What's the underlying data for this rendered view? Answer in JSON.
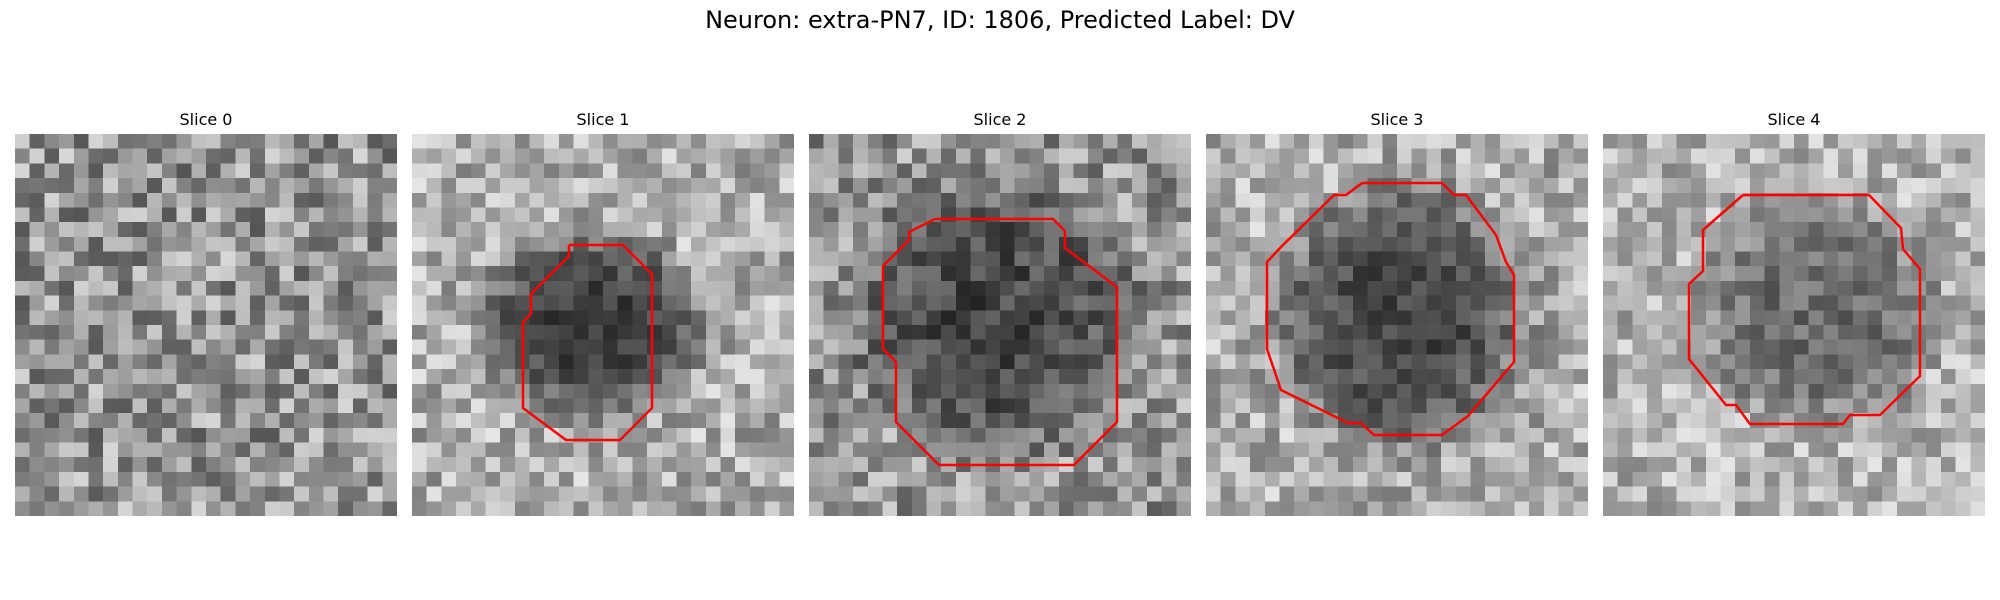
{
  "title": "Neuron: extra-PN7, ID: 1806, Predicted Label: DV",
  "contour_color": "#ff0000",
  "slices": [
    {
      "label": "Slice 0",
      "has_contour": false
    },
    {
      "label": "Slice 1",
      "has_contour": true
    },
    {
      "label": "Slice 2",
      "has_contour": true
    },
    {
      "label": "Slice 3",
      "has_contour": true
    },
    {
      "label": "Slice 4",
      "has_contour": true
    }
  ]
}
